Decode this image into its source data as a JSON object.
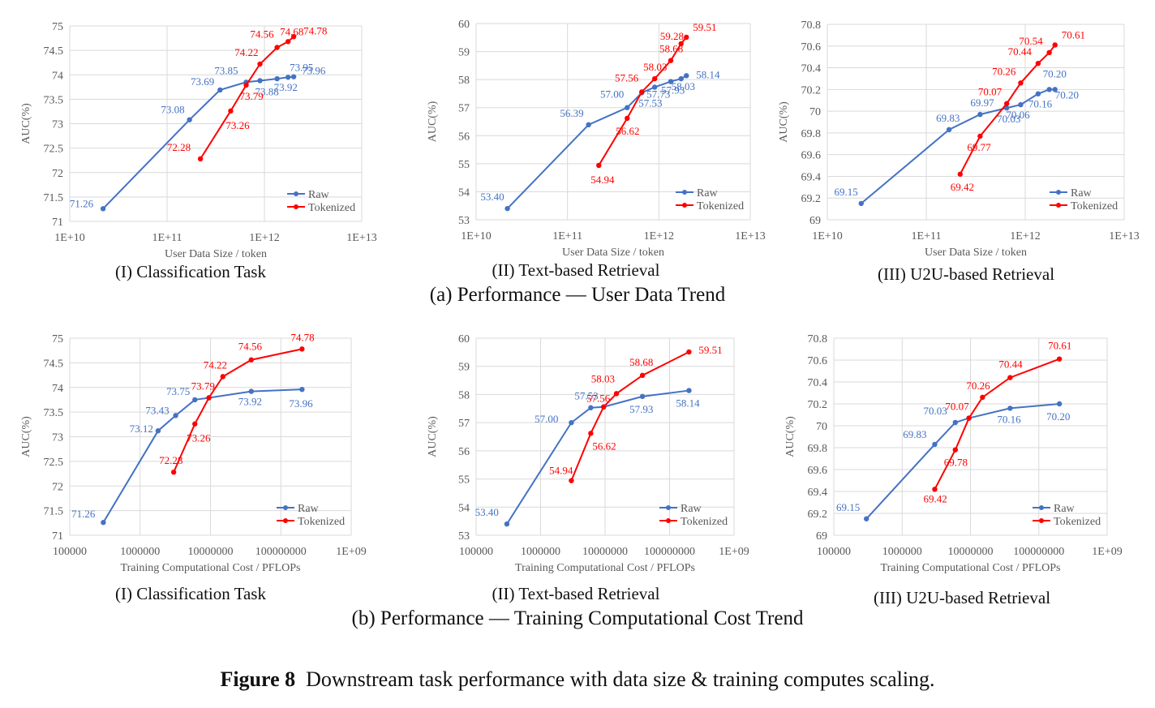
{
  "section_captions": {
    "a": "(a) Performance — User Data Trend",
    "b": "(b) Performance — Training Computational Cost Trend"
  },
  "figure_caption": {
    "label": "Figure 8",
    "text": "Downstream task performance with data size & training computes scaling."
  },
  "colors": {
    "raw": "#4472C4",
    "tokenized": "#FF0000",
    "grid": "#D9D9D9",
    "text": "#595959"
  },
  "chart_data": [
    {
      "type": "line",
      "subtitle": "(I) Classification Task",
      "xlabel": "User Data Size / token",
      "ylabel": "AUC(%)",
      "xscale": "log",
      "xlim": [
        10000000000.0,
        10000000000000.0
      ],
      "xticks": [
        "1E+10",
        "1E+11",
        "1E+12",
        "1E+13"
      ],
      "ylim": [
        71,
        75
      ],
      "yticks": [
        "71",
        "71.5",
        "72",
        "72.5",
        "73",
        "73.5",
        "74",
        "74.5",
        "75"
      ],
      "legend": "bottom-right",
      "series": [
        {
          "name": "Raw",
          "x": [
            22000000000.0,
            170000000000.0,
            350000000000.0,
            650000000000.0,
            900000000000.0,
            1350000000000.0,
            1750000000000.0,
            2000000000000.0
          ],
          "y": [
            71.26,
            73.08,
            73.69,
            73.85,
            73.88,
            73.92,
            73.95,
            73.96
          ],
          "labels": [
            "71.26",
            "73.08",
            "73.69",
            "73.85",
            "73.88",
            "73.92",
            "73.95",
            "73.96"
          ]
        },
        {
          "name": "Tokenized",
          "x": [
            220000000000.0,
            450000000000.0,
            650000000000.0,
            900000000000.0,
            1350000000000.0,
            1750000000000.0,
            2000000000000.0
          ],
          "y": [
            72.28,
            73.26,
            73.79,
            74.22,
            74.56,
            74.68,
            74.78
          ],
          "labels": [
            "72.28",
            "73.26",
            "73.79",
            "74.22",
            "74.56",
            "74.68",
            "74.78"
          ]
        }
      ]
    },
    {
      "type": "line",
      "subtitle": "(II) Text-based Retrieval",
      "xlabel": "User Data Size / token",
      "ylabel": "AUC(%)",
      "xscale": "log",
      "xlim": [
        10000000000.0,
        10000000000000.0
      ],
      "xticks": [
        "1E+10",
        "1E+11",
        "1E+12",
        "1E+13"
      ],
      "ylim": [
        53,
        60
      ],
      "yticks": [
        "53",
        "54",
        "55",
        "56",
        "57",
        "58",
        "59",
        "60"
      ],
      "legend": "bottom-right",
      "series": [
        {
          "name": "Raw",
          "x": [
            22000000000.0,
            170000000000.0,
            450000000000.0,
            650000000000.0,
            900000000000.0,
            1350000000000.0,
            1750000000000.0,
            2000000000000.0
          ],
          "y": [
            53.4,
            56.39,
            57.0,
            57.53,
            57.73,
            57.93,
            58.03,
            58.14
          ],
          "labels": [
            "53.40",
            "56.39",
            "57.00",
            "57.53",
            "57.73",
            "57.93",
            "58.03",
            "58.14"
          ]
        },
        {
          "name": "Tokenized",
          "x": [
            220000000000.0,
            450000000000.0,
            650000000000.0,
            900000000000.0,
            1350000000000.0,
            1750000000000.0,
            2000000000000.0
          ],
          "y": [
            54.94,
            56.62,
            57.56,
            58.03,
            58.68,
            59.28,
            59.51
          ],
          "labels": [
            "54.94",
            "56.62",
            "57.56",
            "58.03",
            "58.68",
            "59.28",
            "59.51"
          ]
        }
      ]
    },
    {
      "type": "line",
      "subtitle": "(III) U2U-based Retrieval",
      "xlabel": "User Data Size / token",
      "ylabel": "AUC(%)",
      "xscale": "log",
      "xlim": [
        10000000000.0,
        10000000000000.0
      ],
      "xticks": [
        "1E+10",
        "1E+11",
        "1E+12",
        "1E+13"
      ],
      "ylim": [
        69,
        70.8
      ],
      "yticks": [
        "69",
        "69.2",
        "69.4",
        "69.6",
        "69.8",
        "70",
        "70.2",
        "70.4",
        "70.6",
        "70.8"
      ],
      "legend": "bottom-right",
      "series": [
        {
          "name": "Raw",
          "x": [
            22000000000.0,
            170000000000.0,
            350000000000.0,
            650000000000.0,
            900000000000.0,
            1350000000000.0,
            1750000000000.0,
            2000000000000.0
          ],
          "y": [
            69.15,
            69.83,
            69.97,
            70.03,
            70.06,
            70.16,
            70.2,
            70.2
          ],
          "labels": [
            "69.15",
            "69.83",
            "69.97",
            "70.03",
            "70.06",
            "70.16",
            "70.20",
            "70.20"
          ]
        },
        {
          "name": "Tokenized",
          "x": [
            220000000000.0,
            350000000000.0,
            650000000000.0,
            900000000000.0,
            1350000000000.0,
            1750000000000.0,
            2000000000000.0
          ],
          "y": [
            69.42,
            69.77,
            70.07,
            70.26,
            70.44,
            70.54,
            70.61
          ],
          "labels": [
            "69.42",
            "69.77",
            "70.07",
            "70.26",
            "70.44",
            "70.54",
            "70.61"
          ]
        }
      ]
    },
    {
      "type": "line",
      "subtitle": "(I) Classification Task",
      "xlabel": "Training Computational Cost / PFLOPs",
      "ylabel": "AUC(%)",
      "xscale": "log",
      "xlim": [
        100000.0,
        1000000000.0
      ],
      "xticks": [
        "100000",
        "1000000",
        "10000000",
        "100000000",
        "1E+09"
      ],
      "ylim": [
        71,
        75
      ],
      "yticks": [
        "71",
        "71.5",
        "72",
        "72.5",
        "73",
        "73.5",
        "74",
        "74.5",
        "75"
      ],
      "legend": "bottom-right",
      "series": [
        {
          "name": "Raw",
          "x": [
            300000.0,
            1800000.0,
            3200000.0,
            6000000.0,
            9500000.0,
            38000000.0,
            200000000.0
          ],
          "y": [
            71.26,
            73.12,
            73.43,
            73.75,
            73.79,
            73.92,
            73.96
          ],
          "labels": [
            "71.26",
            "73.12",
            "73.43",
            "73.75",
            "",
            "73.92",
            "73.96"
          ]
        },
        {
          "name": "Tokenized",
          "x": [
            3000000.0,
            6000000.0,
            9500000.0,
            15000000.0,
            38000000.0,
            200000000.0
          ],
          "y": [
            72.28,
            73.26,
            73.79,
            74.22,
            74.56,
            74.78
          ],
          "labels": [
            "72.28",
            "73.26",
            "73.79",
            "74.22",
            "74.56",
            "74.78"
          ]
        }
      ]
    },
    {
      "type": "line",
      "subtitle": "(II) Text-based Retrieval",
      "xlabel": "Training Computational Cost / PFLOPs",
      "ylabel": "AUC(%)",
      "xscale": "log",
      "xlim": [
        100000.0,
        1000000000.0
      ],
      "xticks": [
        "100000",
        "1000000",
        "10000000",
        "100000000",
        "1E+09"
      ],
      "ylim": [
        53,
        60
      ],
      "yticks": [
        "53",
        "54",
        "55",
        "56",
        "57",
        "58",
        "59",
        "60"
      ],
      "legend": "bottom-right",
      "series": [
        {
          "name": "Raw",
          "x": [
            300000.0,
            3000000.0,
            6000000.0,
            9500000.0,
            38000000.0,
            200000000.0
          ],
          "y": [
            53.4,
            57.0,
            57.53,
            57.56,
            57.93,
            58.14
          ],
          "labels": [
            "53.40",
            "57.00",
            "57.53",
            "",
            "57.93",
            "58.14"
          ]
        },
        {
          "name": "Tokenized",
          "x": [
            3000000.0,
            6000000.0,
            9500000.0,
            15000000.0,
            38000000.0,
            200000000.0
          ],
          "y": [
            54.94,
            56.62,
            57.56,
            58.03,
            58.68,
            59.51
          ],
          "labels": [
            "54.94",
            "56.62",
            "57.56",
            "58.03",
            "58.68",
            "59.51"
          ]
        }
      ]
    },
    {
      "type": "line",
      "subtitle": "(III) U2U-based Retrieval",
      "xlabel": "Training Computational Cost / PFLOPs",
      "ylabel": "AUC(%)",
      "xscale": "log",
      "xlim": [
        100000.0,
        1000000000.0
      ],
      "xticks": [
        "100000",
        "1000000",
        "10000000",
        "100000000",
        "1E+09"
      ],
      "ylim": [
        69,
        70.8
      ],
      "yticks": [
        "69",
        "69.2",
        "69.4",
        "69.6",
        "69.8",
        "70",
        "70.2",
        "70.4",
        "70.6",
        "70.8"
      ],
      "legend": "bottom-right",
      "series": [
        {
          "name": "Raw",
          "x": [
            300000.0,
            3000000.0,
            6000000.0,
            9500000.0,
            38000000.0,
            200000000.0
          ],
          "y": [
            69.15,
            69.83,
            70.03,
            70.07,
            70.16,
            70.2
          ],
          "labels": [
            "69.15",
            "69.83",
            "70.03",
            "",
            "70.16",
            "70.20"
          ]
        },
        {
          "name": "Tokenized",
          "x": [
            3000000.0,
            6000000.0,
            9500000.0,
            15000000.0,
            38000000.0,
            200000000.0
          ],
          "y": [
            69.42,
            69.78,
            70.07,
            70.26,
            70.44,
            70.61
          ],
          "labels": [
            "69.42",
            "69.78",
            "70.07",
            "70.26",
            "70.44",
            "70.61"
          ]
        }
      ]
    }
  ]
}
